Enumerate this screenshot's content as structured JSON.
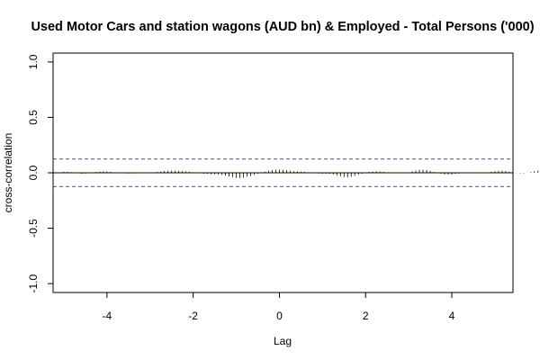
{
  "chart_data": {
    "type": "bar",
    "title": "Used Motor Cars and station wagons (AUD bn) & Employed - Total Persons ('000)",
    "xlabel": "Lag",
    "ylabel": "cross-correlation",
    "xlim": [
      -5.25,
      5.42
    ],
    "ylim": [
      -1.08,
      1.08
    ],
    "x_ticks": [
      -4,
      -2,
      0,
      2,
      4
    ],
    "x_tick_labels": [
      "-4",
      "-2",
      "0",
      "2",
      "4"
    ],
    "y_ticks": [
      -1.0,
      -0.5,
      0.0,
      0.5,
      1.0
    ],
    "y_tick_labels": [
      "-1.0",
      "-0.5",
      "0.0",
      "0.5",
      "1.0"
    ],
    "confidence_limit": 0.125,
    "grid": false,
    "lag_start": -5.0,
    "lag_step": 0.0833333,
    "values": [
      0.01,
      0.008,
      0.005,
      0.002,
      -0.004,
      -0.008,
      -0.006,
      -0.002,
      0.004,
      0.008,
      0.012,
      0.014,
      0.012,
      0.008,
      0.004,
      0.0,
      -0.002,
      -0.004,
      -0.006,
      -0.006,
      -0.005,
      -0.004,
      -0.003,
      -0.002,
      0.0,
      0.004,
      0.008,
      0.012,
      0.016,
      0.018,
      0.02,
      0.02,
      0.018,
      0.015,
      0.012,
      0.008,
      0.004,
      0.0,
      -0.004,
      -0.008,
      -0.01,
      -0.012,
      -0.014,
      -0.016,
      -0.02,
      -0.026,
      -0.032,
      -0.04,
      -0.046,
      -0.048,
      -0.044,
      -0.036,
      -0.028,
      -0.018,
      -0.008,
      0.002,
      0.01,
      0.018,
      0.024,
      0.028,
      0.028,
      0.026,
      0.022,
      0.018,
      0.014,
      0.012,
      0.01,
      0.008,
      0.004,
      0.0,
      -0.004,
      -0.006,
      -0.008,
      -0.008,
      -0.01,
      -0.016,
      -0.024,
      -0.032,
      -0.038,
      -0.04,
      -0.036,
      -0.028,
      -0.018,
      -0.008,
      0.002,
      0.008,
      0.012,
      0.014,
      0.012,
      0.008,
      0.004,
      0.002,
      0.0,
      -0.002,
      -0.004,
      -0.002,
      0.004,
      0.012,
      0.02,
      0.026,
      0.028,
      0.024,
      0.016,
      0.008,
      0.0,
      -0.008,
      -0.014,
      -0.016,
      -0.014,
      -0.01,
      -0.006,
      -0.002,
      0.002,
      0.004,
      0.004,
      0.004,
      0.002,
      0.002,
      0.004,
      0.008,
      0.014,
      0.018,
      0.02,
      0.016,
      0.01,
      0.004,
      -0.002,
      -0.004,
      -0.004,
      0.0,
      0.006,
      0.014,
      0.02,
      0.024,
      0.02
    ]
  }
}
